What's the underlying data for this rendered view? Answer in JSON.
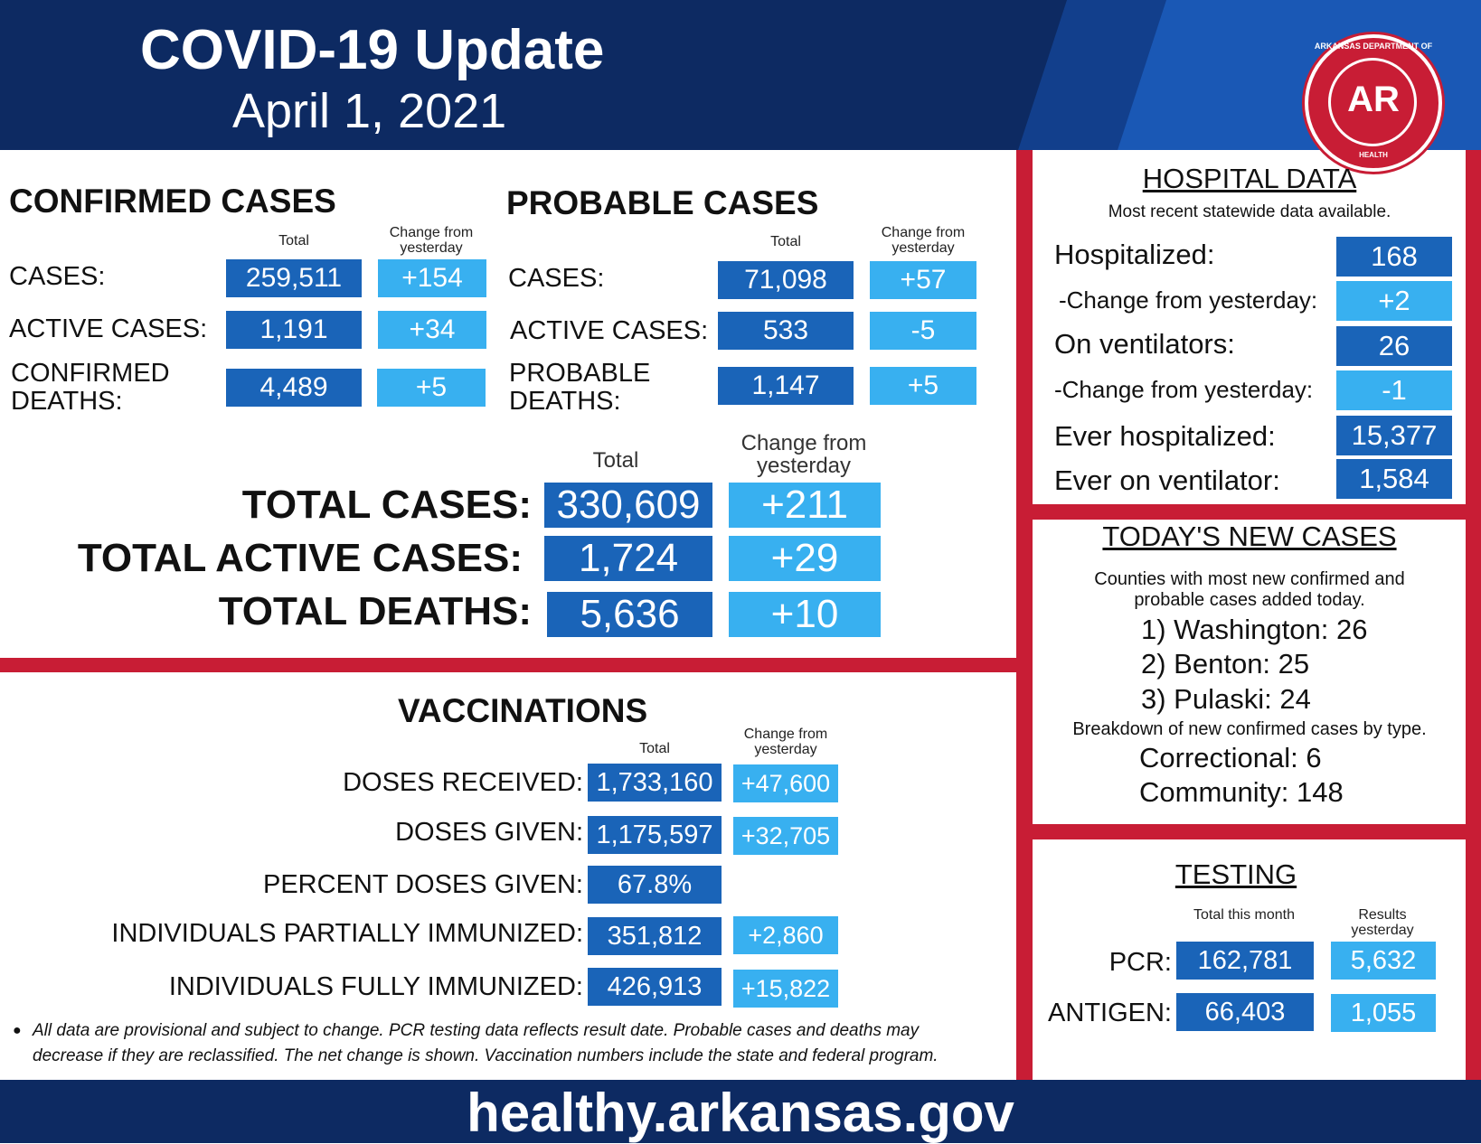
{
  "header": {
    "title": "COVID-19 Update",
    "date": "April 1, 2021"
  },
  "seal": {
    "top_text": "ARKANSAS DEPARTMENT OF",
    "center": "AR",
    "bottom_text": "HEALTH"
  },
  "confirmed": {
    "title": "CONFIRMED CASES",
    "total_header": "Total",
    "change_header": "Change from yesterday",
    "rows": [
      {
        "label": "CASES:",
        "total": "259,511",
        "change": "+154"
      },
      {
        "label": "ACTIVE CASES:",
        "total": "1,191",
        "change": "+34"
      },
      {
        "label": "CONFIRMED DEATHS:",
        "total": "4,489",
        "change": "+5"
      }
    ]
  },
  "probable": {
    "title": "PROBABLE CASES",
    "total_header": "Total",
    "change_header": "Change from yesterday",
    "rows": [
      {
        "label": "CASES:",
        "total": "71,098",
        "change": "+57"
      },
      {
        "label": "ACTIVE CASES:",
        "total": "533",
        "change": "-5"
      },
      {
        "label": "PROBABLE DEATHS:",
        "total": "1,147",
        "change": "+5"
      }
    ]
  },
  "totals": {
    "total_header": "Total",
    "change_header": "Change from yesterday",
    "rows": [
      {
        "label": "TOTAL CASES:",
        "total": "330,609",
        "change": "+211"
      },
      {
        "label": "TOTAL ACTIVE CASES:",
        "total": "1,724",
        "change": "+29"
      },
      {
        "label": "TOTAL DEATHS:",
        "total": "5,636",
        "change": "+10"
      }
    ]
  },
  "vaccinations": {
    "title": "VACCINATIONS",
    "total_header": "Total",
    "change_header": "Change from yesterday",
    "rows": [
      {
        "label": "DOSES RECEIVED:",
        "total": "1,733,160",
        "change": "+47,600"
      },
      {
        "label": "DOSES GIVEN:",
        "total": "1,175,597",
        "change": "+32,705"
      },
      {
        "label": "PERCENT DOSES GIVEN:",
        "total": "67.8%",
        "change": ""
      },
      {
        "label": "INDIVIDUALS PARTIALLY IMMUNIZED:",
        "total": "351,812",
        "change": "+2,860"
      },
      {
        "label": "INDIVIDUALS FULLY IMMUNIZED:",
        "total": "426,913",
        "change": "+15,822"
      }
    ]
  },
  "note": {
    "line1": "All data are provisional and subject to change. PCR testing data reflects result date. Probable cases and deaths may",
    "line2": "decrease if they are reclassified. The net change is shown. Vaccination numbers include the state and federal program."
  },
  "hospital": {
    "title": "HOSPITAL DATA",
    "subtitle": "Most recent statewide data available.",
    "rows": [
      {
        "label": "Hospitalized:",
        "value": "168"
      },
      {
        "label": "-Change from yesterday:",
        "value": "+2"
      },
      {
        "label": "On ventilators:",
        "value": "26"
      },
      {
        "label": "-Change from yesterday:",
        "value": "-1"
      },
      {
        "label": "Ever hospitalized:",
        "value": "15,377"
      },
      {
        "label": "Ever on ventilator:",
        "value": "1,584"
      }
    ]
  },
  "new_cases": {
    "title": "TODAY'S NEW CASES",
    "subtitle1": "Counties with most new confirmed and",
    "subtitle2": "probable cases added today.",
    "counties": [
      "1) Washington: 26",
      "2) Benton: 25",
      "3) Pulaski: 24"
    ],
    "breakdown_title": "Breakdown of new confirmed cases by type.",
    "breakdown": [
      "Correctional: 6",
      "Community: 148"
    ]
  },
  "testing": {
    "title": "TESTING",
    "total_header": "Total this month",
    "results_header": "Results yesterday",
    "rows": [
      {
        "label": "PCR:",
        "total": "162,781",
        "yesterday": "5,632"
      },
      {
        "label": "ANTIGEN:",
        "total": "66,403",
        "yesterday": "1,055"
      }
    ]
  },
  "footer": {
    "url": "healthy.arkansas.gov"
  }
}
